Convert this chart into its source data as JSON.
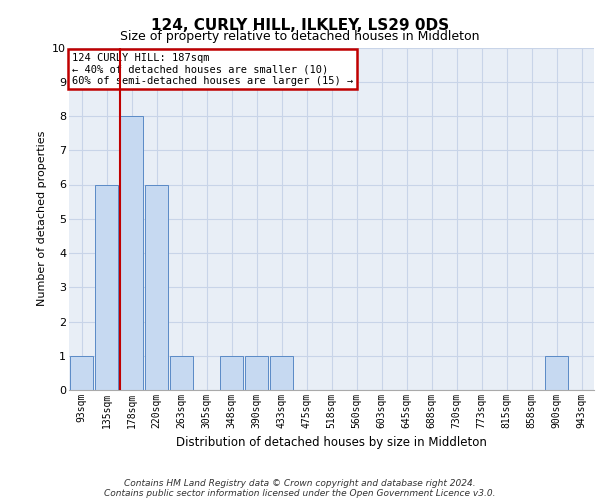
{
  "title": "124, CURLY HILL, ILKLEY, LS29 0DS",
  "subtitle": "Size of property relative to detached houses in Middleton",
  "xlabel": "Distribution of detached houses by size in Middleton",
  "ylabel": "Number of detached properties",
  "categories": [
    "93sqm",
    "135sqm",
    "178sqm",
    "220sqm",
    "263sqm",
    "305sqm",
    "348sqm",
    "390sqm",
    "433sqm",
    "475sqm",
    "518sqm",
    "560sqm",
    "603sqm",
    "645sqm",
    "688sqm",
    "730sqm",
    "773sqm",
    "815sqm",
    "858sqm",
    "900sqm",
    "943sqm"
  ],
  "bar_heights": [
    1,
    6,
    8,
    6,
    1,
    0,
    1,
    1,
    1,
    0,
    0,
    0,
    0,
    0,
    0,
    0,
    0,
    0,
    0,
    1,
    0
  ],
  "bar_color": "#c6d9f1",
  "bar_edge_color": "#5a8ac6",
  "property_index": 2,
  "property_line_color": "#c00000",
  "annotation_text": "124 CURLY HILL: 187sqm\n← 40% of detached houses are smaller (10)\n60% of semi-detached houses are larger (15) →",
  "annotation_box_color": "#c00000",
  "ylim": [
    0,
    10
  ],
  "yticks": [
    0,
    1,
    2,
    3,
    4,
    5,
    6,
    7,
    8,
    9,
    10
  ],
  "grid_color": "#c8d4e8",
  "background_color": "#e8eef6",
  "footer_line1": "Contains HM Land Registry data © Crown copyright and database right 2024.",
  "footer_line2": "Contains public sector information licensed under the Open Government Licence v3.0.",
  "title_fontsize": 11,
  "subtitle_fontsize": 9,
  "ylabel_fontsize": 8,
  "xlabel_fontsize": 8.5,
  "tick_fontsize": 7,
  "footer_fontsize": 6.5
}
